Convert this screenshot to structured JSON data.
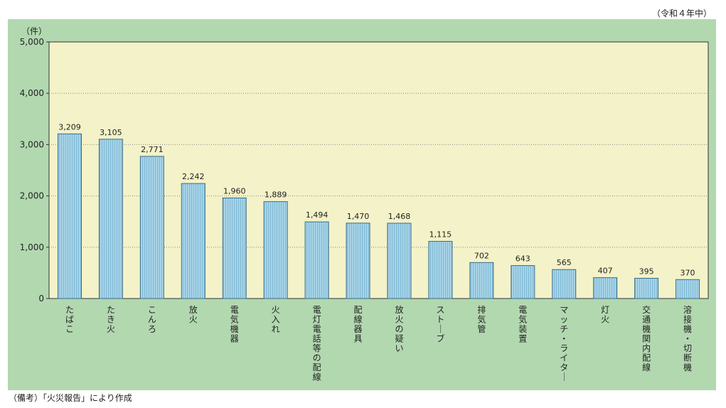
{
  "period_note": "（令和４年中）",
  "source_note": "（備考）「火災報告」により作成",
  "chart_data": {
    "type": "bar",
    "title": "",
    "xlabel": "",
    "ylabel": "（件）",
    "ylim": [
      0,
      5000
    ],
    "yticks": [
      0,
      1000,
      2000,
      3000,
      4000,
      5000
    ],
    "ytick_labels": [
      "0",
      "1,000",
      "2,000",
      "3,000",
      "4,000",
      "5,000"
    ],
    "grid": true,
    "categories": [
      "たばこ",
      "たき火",
      "こんろ",
      "放火",
      "電気機器",
      "火入れ",
      "電灯電話等の配線",
      "配線器具",
      "放火の疑い",
      "ストーブ",
      "排気管",
      "電気装置",
      "マッチ・ライター",
      "灯火",
      "交通機関内配線",
      "溶接機・切断機"
    ],
    "values": [
      3209,
      3105,
      2771,
      2242,
      1960,
      1889,
      1494,
      1470,
      1468,
      1115,
      702,
      643,
      565,
      407,
      395,
      370
    ],
    "value_labels": [
      "3,209",
      "3,105",
      "2,771",
      "2,242",
      "1,960",
      "1,889",
      "1,494",
      "1,470",
      "1,468",
      "1,115",
      "702",
      "643",
      "565",
      "407",
      "395",
      "370"
    ],
    "colors": {
      "plot_bg": "#f4f2c8",
      "panel_bg": "#b2d8b0",
      "bar_fill": "#a8d4e8",
      "bar_stripe": "#7fb8d4",
      "bar_border": "#3a6e8a"
    }
  }
}
